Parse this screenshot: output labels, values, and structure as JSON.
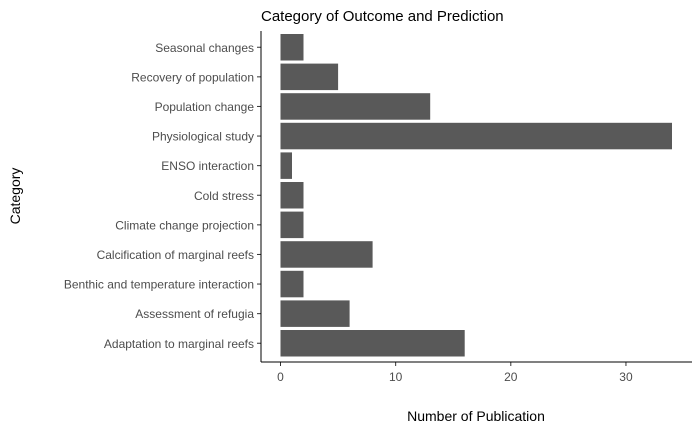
{
  "chart_data": {
    "type": "bar",
    "orientation": "horizontal",
    "title": "Category of Outcome and Prediction",
    "xlabel": "Number of Publication",
    "ylabel": "Category",
    "categories": [
      "Seasonal changes",
      "Recovery of population",
      "Population change",
      "Physiological study",
      "ENSO interaction",
      "Cold stress",
      "Climate change projection",
      "Calcification of marginal reefs",
      "Benthic and temperature interaction",
      "Assessment of refugia",
      "Adaptation to marginal reefs"
    ],
    "values": [
      2,
      5,
      13,
      34,
      1,
      2,
      2,
      8,
      2,
      6,
      16
    ],
    "xlim": [
      0,
      35
    ],
    "xticks": [
      0,
      10,
      20,
      30
    ],
    "grid": false,
    "bar_color": "#595959"
  }
}
